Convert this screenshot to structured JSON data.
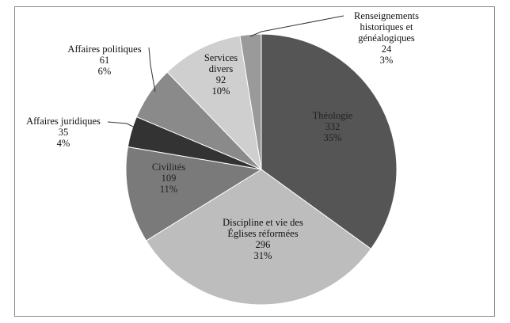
{
  "chart_data": {
    "type": "pie",
    "categories": [
      "Théologie",
      "Discipline et vie des Églises réformées",
      "Civilités",
      "Affaires juridiques",
      "Affaires politiques",
      "Services divers",
      "Renseignements historiques et généalogiques"
    ],
    "values": [
      332,
      296,
      109,
      35,
      61,
      92,
      24
    ],
    "percent_labels": [
      "35%",
      "31%",
      "11%",
      "4%",
      "6%",
      "10%",
      "3%"
    ],
    "colors": [
      "#555555",
      "#bdbdbd",
      "#7a7a7a",
      "#333333",
      "#8a8a8a",
      "#cfcfcf",
      "#9a9a9a"
    ]
  }
}
